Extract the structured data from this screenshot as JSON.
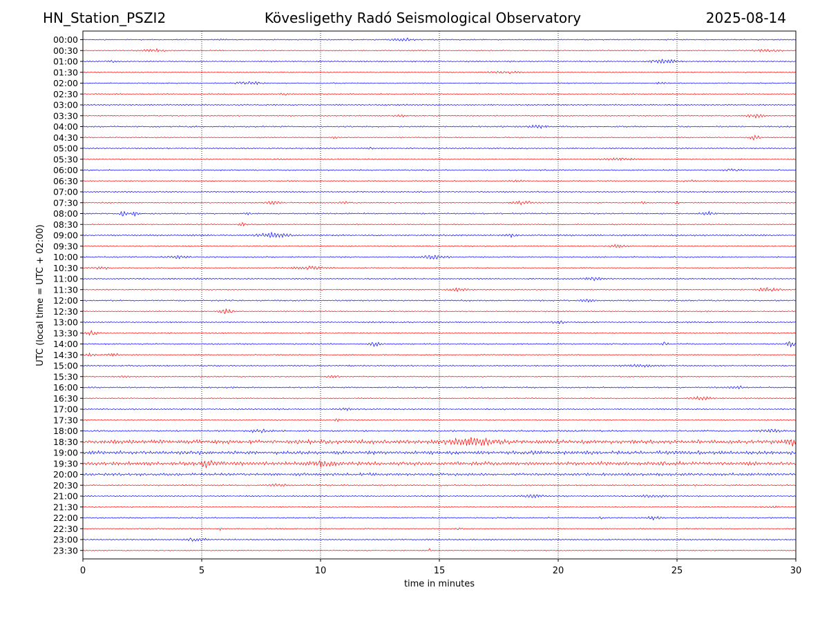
{
  "header": {
    "station": "HN_Station_PSZI2",
    "observatory": "Kövesligethy Radó Seismological Observatory",
    "date": "2025-08-14"
  },
  "chart_data": {
    "type": "line",
    "title": "Kövesligethy Radó Seismological Observatory",
    "xlabel": "time in minutes",
    "ylabel": "UTC (local time = UTC + 02:00)",
    "xlim": [
      0,
      30
    ],
    "x_ticks": [
      0,
      5,
      10,
      15,
      20,
      25,
      30
    ],
    "grid": "vertical dotted lines at 5-minute ticks",
    "trace_colors": [
      "#0000ff",
      "#ff0000"
    ],
    "rows": [
      {
        "label": "00:00",
        "amp": 1.2,
        "events": [
          {
            "t": 13.5,
            "a": 2.5,
            "w": 1.0
          },
          {
            "t": 5.9,
            "a": 1.5,
            "w": 0.3
          }
        ]
      },
      {
        "label": "00:30",
        "amp": 1.2,
        "events": [
          {
            "t": 3.0,
            "a": 2.5,
            "w": 1.0
          },
          {
            "t": 28.8,
            "a": 2.5,
            "w": 1.0
          }
        ]
      },
      {
        "label": "01:00",
        "amp": 1.5,
        "events": [
          {
            "t": 24.5,
            "a": 3.0,
            "w": 1.2
          },
          {
            "t": 1.2,
            "a": 1.5,
            "w": 0.4
          }
        ]
      },
      {
        "label": "01:30",
        "amp": 1.2,
        "events": [
          {
            "t": 17.8,
            "a": 2.5,
            "w": 1.0
          }
        ]
      },
      {
        "label": "02:00",
        "amp": 1.2,
        "events": [
          {
            "t": 7.0,
            "a": 3.0,
            "w": 1.0
          },
          {
            "t": 24.3,
            "a": 1.5,
            "w": 0.4
          }
        ]
      },
      {
        "label": "02:30",
        "amp": 1.2,
        "events": [
          {
            "t": 8.5,
            "a": 2.0,
            "w": 0.4
          }
        ]
      },
      {
        "label": "03:00",
        "amp": 1.5,
        "events": []
      },
      {
        "label": "03:30",
        "amp": 1.2,
        "events": [
          {
            "t": 13.3,
            "a": 2.5,
            "w": 0.5
          },
          {
            "t": 28.3,
            "a": 3.5,
            "w": 0.7
          }
        ]
      },
      {
        "label": "04:00",
        "amp": 1.5,
        "events": [
          {
            "t": 19.2,
            "a": 2.5,
            "w": 0.7
          }
        ]
      },
      {
        "label": "04:30",
        "amp": 1.2,
        "events": [
          {
            "t": 28.3,
            "a": 4.0,
            "w": 0.5
          },
          {
            "t": 10.6,
            "a": 2.0,
            "w": 0.3
          }
        ]
      },
      {
        "label": "05:00",
        "amp": 1.5,
        "events": [
          {
            "t": 12.1,
            "a": 1.5,
            "w": 0.2
          }
        ]
      },
      {
        "label": "05:30",
        "amp": 1.2,
        "events": [
          {
            "t": 22.5,
            "a": 2.0,
            "w": 1.5
          },
          {
            "t": 8.3,
            "a": 2.0,
            "w": 0.2
          }
        ]
      },
      {
        "label": "06:00",
        "amp": 1.5,
        "events": [
          {
            "t": 27.3,
            "a": 1.5,
            "w": 0.6
          }
        ]
      },
      {
        "label": "06:30",
        "amp": 1.2,
        "events": [
          {
            "t": 18.2,
            "a": 1.5,
            "w": 0.7
          },
          {
            "t": 25.5,
            "a": 1.5,
            "w": 0.6
          }
        ]
      },
      {
        "label": "07:00",
        "amp": 1.5,
        "events": []
      },
      {
        "label": "07:30",
        "amp": 1.2,
        "events": [
          {
            "t": 8.0,
            "a": 3.0,
            "w": 0.6
          },
          {
            "t": 18.5,
            "a": 3.5,
            "w": 0.8
          },
          {
            "t": 23.6,
            "a": 5.0,
            "w": 0.15
          },
          {
            "t": 25.0,
            "a": 4.0,
            "w": 0.15
          },
          {
            "t": 11.0,
            "a": 2.5,
            "w": 0.3
          }
        ]
      },
      {
        "label": "08:00",
        "amp": 1.5,
        "events": [
          {
            "t": 1.7,
            "a": 6.0,
            "w": 0.25
          },
          {
            "t": 2.2,
            "a": 4.5,
            "w": 0.3
          },
          {
            "t": 6.9,
            "a": 4.0,
            "w": 0.15
          },
          {
            "t": 26.3,
            "a": 3.0,
            "w": 0.5
          }
        ]
      },
      {
        "label": "08:30",
        "amp": 1.2,
        "events": [
          {
            "t": 6.7,
            "a": 3.0,
            "w": 0.3
          }
        ]
      },
      {
        "label": "09:00",
        "amp": 1.8,
        "events": [
          {
            "t": 8.0,
            "a": 4.0,
            "w": 1.2
          },
          {
            "t": 18.0,
            "a": 3.0,
            "w": 0.4
          }
        ]
      },
      {
        "label": "09:30",
        "amp": 1.2,
        "events": [
          {
            "t": 22.5,
            "a": 2.5,
            "w": 0.6
          }
        ]
      },
      {
        "label": "10:00",
        "amp": 1.5,
        "events": [
          {
            "t": 14.8,
            "a": 3.0,
            "w": 1.0
          },
          {
            "t": 4.0,
            "a": 2.0,
            "w": 1.0
          }
        ]
      },
      {
        "label": "10:30",
        "amp": 1.2,
        "events": [
          {
            "t": 9.5,
            "a": 2.5,
            "w": 1.5
          },
          {
            "t": 0.8,
            "a": 2.0,
            "w": 0.8
          }
        ]
      },
      {
        "label": "11:00",
        "amp": 1.5,
        "events": [
          {
            "t": 21.5,
            "a": 3.0,
            "w": 0.7
          }
        ]
      },
      {
        "label": "11:30",
        "amp": 1.2,
        "events": [
          {
            "t": 15.8,
            "a": 3.0,
            "w": 0.8
          },
          {
            "t": 28.8,
            "a": 4.0,
            "w": 0.8
          }
        ]
      },
      {
        "label": "12:00",
        "amp": 1.5,
        "events": [
          {
            "t": 21.2,
            "a": 2.0,
            "w": 0.6
          }
        ]
      },
      {
        "label": "12:30",
        "amp": 1.2,
        "events": [
          {
            "t": 6.0,
            "a": 5.5,
            "w": 0.5
          }
        ]
      },
      {
        "label": "13:00",
        "amp": 1.5,
        "events": [
          {
            "t": 20.0,
            "a": 2.5,
            "w": 0.5
          }
        ]
      },
      {
        "label": "13:30",
        "amp": 1.2,
        "events": [
          {
            "t": 0.4,
            "a": 3.5,
            "w": 0.5
          }
        ]
      },
      {
        "label": "14:00",
        "amp": 1.5,
        "events": [
          {
            "t": 12.3,
            "a": 4.0,
            "w": 0.5
          },
          {
            "t": 24.5,
            "a": 3.0,
            "w": 0.3
          },
          {
            "t": 29.8,
            "a": 5.0,
            "w": 0.4
          }
        ]
      },
      {
        "label": "14:30",
        "amp": 1.2,
        "events": [
          {
            "t": 0.3,
            "a": 3.0,
            "w": 0.4
          },
          {
            "t": 1.3,
            "a": 2.0,
            "w": 0.6
          }
        ]
      },
      {
        "label": "15:00",
        "amp": 1.5,
        "events": [
          {
            "t": 23.5,
            "a": 2.0,
            "w": 1.5
          }
        ]
      },
      {
        "label": "15:30",
        "amp": 1.2,
        "events": [
          {
            "t": 10.5,
            "a": 2.5,
            "w": 0.5
          },
          {
            "t": 1.8,
            "a": 2.0,
            "w": 0.4
          }
        ]
      },
      {
        "label": "16:00",
        "amp": 1.5,
        "events": [
          {
            "t": 27.5,
            "a": 2.0,
            "w": 0.7
          }
        ]
      },
      {
        "label": "16:30",
        "amp": 1.2,
        "events": [
          {
            "t": 26.0,
            "a": 3.5,
            "w": 0.8
          }
        ]
      },
      {
        "label": "17:00",
        "amp": 1.5,
        "events": [
          {
            "t": 11.0,
            "a": 3.0,
            "w": 0.5
          }
        ]
      },
      {
        "label": "17:30",
        "amp": 1.2,
        "events": [
          {
            "t": 10.7,
            "a": 2.0,
            "w": 0.3
          }
        ]
      },
      {
        "label": "18:00",
        "amp": 1.8,
        "events": [
          {
            "t": 7.5,
            "a": 2.5,
            "w": 1.0
          },
          {
            "t": 29.0,
            "a": 2.5,
            "w": 1.0
          }
        ]
      },
      {
        "label": "18:30",
        "amp": 4.5,
        "events": [
          {
            "t": 16.5,
            "a": 5.0,
            "w": 2.0
          },
          {
            "t": 29.8,
            "a": 5.0,
            "w": 0.5
          }
        ]
      },
      {
        "label": "19:00",
        "amp": 4.0,
        "events": []
      },
      {
        "label": "19:30",
        "amp": 4.0,
        "events": [
          {
            "t": 5.2,
            "a": 4.5,
            "w": 1.0
          },
          {
            "t": 10.0,
            "a": 4.5,
            "w": 1.0
          }
        ]
      },
      {
        "label": "20:00",
        "amp": 3.0,
        "events": []
      },
      {
        "label": "20:30",
        "amp": 1.5,
        "events": [
          {
            "t": 8.2,
            "a": 3.0,
            "w": 0.6
          }
        ]
      },
      {
        "label": "21:00",
        "amp": 1.5,
        "events": [
          {
            "t": 19.0,
            "a": 2.5,
            "w": 1.0
          },
          {
            "t": 24.0,
            "a": 2.0,
            "w": 1.0
          }
        ]
      },
      {
        "label": "21:30",
        "amp": 1.2,
        "events": [
          {
            "t": 29.0,
            "a": 1.5,
            "w": 0.5
          }
        ]
      },
      {
        "label": "22:00",
        "amp": 1.5,
        "events": [
          {
            "t": 24.0,
            "a": 3.0,
            "w": 0.6
          },
          {
            "t": 21.8,
            "a": 2.0,
            "w": 0.2
          }
        ]
      },
      {
        "label": "22:30",
        "amp": 1.2,
        "events": [
          {
            "t": 5.8,
            "a": 3.0,
            "w": 0.15
          },
          {
            "t": 15.8,
            "a": 1.5,
            "w": 0.2
          }
        ]
      },
      {
        "label": "23:00",
        "amp": 1.5,
        "events": [
          {
            "t": 4.8,
            "a": 2.5,
            "w": 0.8
          }
        ]
      },
      {
        "label": "23:30",
        "amp": 1.0,
        "events": [
          {
            "t": 14.6,
            "a": 4.0,
            "w": 0.1
          }
        ]
      }
    ]
  }
}
